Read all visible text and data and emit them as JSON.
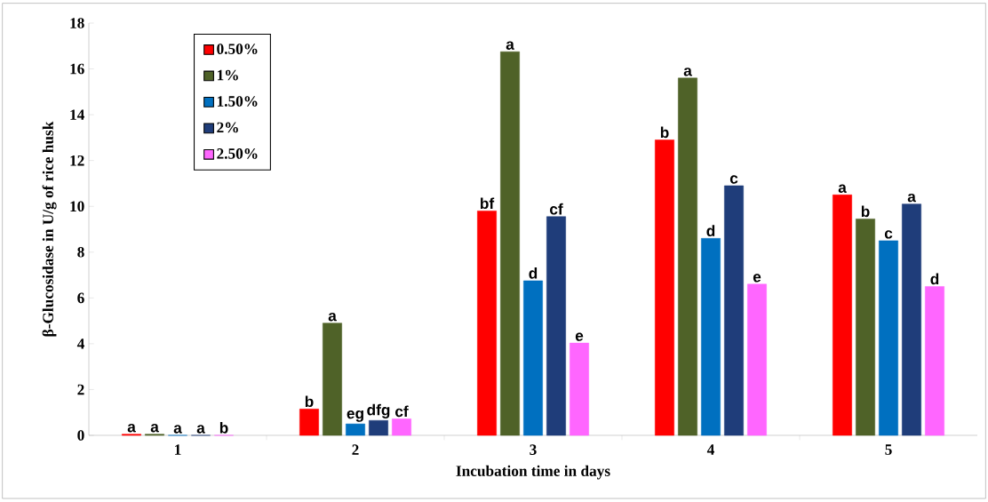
{
  "chart_data": {
    "type": "bar",
    "xlabel": "Incubation time in days",
    "ylabel": "β-Glucosidase in U/g of rice husk",
    "categories": [
      "1",
      "2",
      "3",
      "4",
      "5"
    ],
    "series": [
      {
        "name": "0.50%",
        "color": "#ff0000",
        "values": [
          0.05,
          1.15,
          9.8,
          12.9,
          10.5
        ],
        "value_labels": [
          "a",
          "b",
          "bf",
          "b",
          "a"
        ]
      },
      {
        "name": "1%",
        "color": "#4f6228",
        "values": [
          0.05,
          4.9,
          16.75,
          15.6,
          9.45
        ],
        "value_labels": [
          "a",
          "a",
          "a",
          "a",
          "b"
        ]
      },
      {
        "name": "1.50%",
        "color": "#0070c0",
        "values": [
          0,
          0.5,
          6.75,
          8.6,
          8.5
        ],
        "value_labels": [
          "a",
          "eg",
          "d",
          "d",
          "c"
        ]
      },
      {
        "name": "2%",
        "color": "#1f3d7a",
        "values": [
          0,
          0.65,
          9.55,
          10.9,
          10.1
        ],
        "value_labels": [
          "a",
          "dfg",
          "cf",
          "c",
          "a"
        ]
      },
      {
        "name": "2.50%",
        "color": "#ff66ff",
        "values": [
          0,
          0.72,
          4.03,
          6.6,
          6.5
        ],
        "value_labels": [
          "b",
          "cf",
          "e",
          "e",
          "d"
        ]
      }
    ],
    "ylim": [
      0,
      18
    ],
    "yticks": [
      0,
      2,
      4,
      6,
      8,
      10,
      12,
      14,
      16,
      18
    ],
    "legend": "top left"
  }
}
